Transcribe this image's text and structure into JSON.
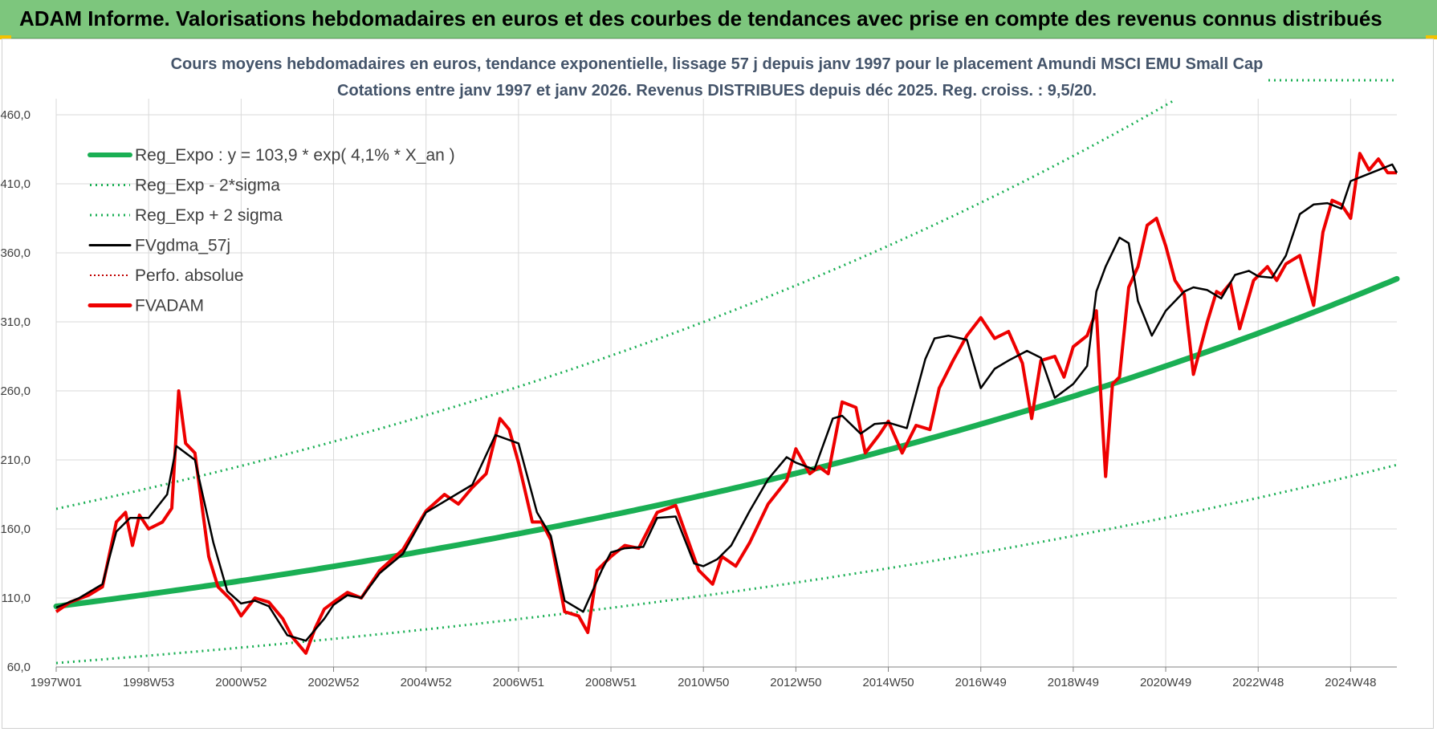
{
  "banner": {
    "title": "ADAM Informe. Valorisations hebdomadaires en euros et des courbes de tendances avec prise en compte des revenus connus distribués"
  },
  "colors": {
    "banner_bg": "#7dc67d",
    "reg_expo": "#1aaf54",
    "sigma_bands": "#1aaf54",
    "fvgdma": "#000000",
    "perfo": "#c00000",
    "fvadam": "#ee0000",
    "title_text": "#44546a"
  },
  "chart_data": {
    "type": "line",
    "title": "Cours moyens hebdomadaires en euros, tendance exponentielle, lissage 57 j depuis janv 1997  pour le placement Amundi MSCI EMU Small Cap",
    "subtitle": "Cotations entre janv 1997 et janv 2026. Revenus DISTRIBUES depuis déc 2025.  Reg. croiss. : 9,5/20.",
    "xlabel": "",
    "ylabel": "",
    "ylim": [
      60,
      460
    ],
    "yticks": [
      "60,0",
      "110,0",
      "160,0",
      "210,0",
      "260,0",
      "310,0",
      "360,0",
      "410,0",
      "460,0"
    ],
    "xlim": [
      1997.0,
      2026.0
    ],
    "xtick_positions": [
      1997.0,
      1999.0,
      2001.0,
      2003.0,
      2005.0,
      2007.0,
      2009.0,
      2011.0,
      2013.0,
      2015.0,
      2017.0,
      2019.0,
      2021.0,
      2023.0,
      2025.0
    ],
    "xticks": [
      "1997W01",
      "1998W53",
      "2000W52",
      "2002W52",
      "2004W52",
      "2006W51",
      "2008W51",
      "2010W50",
      "2012W50",
      "2014W50",
      "2016W49",
      "2018W49",
      "2020W49",
      "2022W48",
      "2024W48"
    ],
    "grid": true,
    "legend_position": "top-left",
    "regression": {
      "a": 103.9,
      "rate": 0.041,
      "upper_factor": 1.68,
      "lower_factor": 0.605
    },
    "series": [
      {
        "name": "Reg_Expo : y = 103,9 * exp( 4,1% *  X_an )",
        "style": "solid-thick",
        "color": "#1aaf54"
      },
      {
        "name": "Reg_Exp - 2*sigma",
        "style": "dotted",
        "color": "#1aaf54"
      },
      {
        "name": "Reg_Exp + 2 sigma",
        "style": "dotted",
        "color": "#1aaf54"
      },
      {
        "name": "FVgdma_57j",
        "style": "solid",
        "color": "#000000",
        "x": [
          1997.0,
          1997.5,
          1998.0,
          1998.3,
          1998.6,
          1999.0,
          1999.4,
          1999.6,
          2000.0,
          2000.4,
          2000.7,
          2001.0,
          2001.3,
          2001.6,
          2002.0,
          2002.4,
          2002.8,
          2003.0,
          2003.3,
          2003.6,
          2004.0,
          2004.5,
          2005.0,
          2005.5,
          2006.0,
          2006.5,
          2007.0,
          2007.4,
          2007.7,
          2008.0,
          2008.4,
          2008.8,
          2009.0,
          2009.3,
          2009.7,
          2010.0,
          2010.4,
          2010.8,
          2011.0,
          2011.3,
          2011.6,
          2012.0,
          2012.4,
          2012.8,
          2013.0,
          2013.4,
          2013.8,
          2014.0,
          2014.4,
          2014.7,
          2015.0,
          2015.4,
          2015.8,
          2016.0,
          2016.3,
          2016.7,
          2017.0,
          2017.3,
          2017.6,
          2018.0,
          2018.3,
          2018.6,
          2019.0,
          2019.3,
          2019.5,
          2019.7,
          2020.0,
          2020.2,
          2020.4,
          2020.7,
          2021.0,
          2021.4,
          2021.6,
          2021.9,
          2022.2,
          2022.5,
          2022.8,
          2023.0,
          2023.3,
          2023.6,
          2023.9,
          2024.2,
          2024.5,
          2024.8,
          2025.0,
          2025.3,
          2025.6,
          2025.9,
          2026.0
        ],
        "y": [
          103,
          110,
          120,
          158,
          168,
          168,
          185,
          220,
          210,
          150,
          115,
          106,
          108,
          104,
          83,
          79,
          95,
          105,
          112,
          110,
          128,
          142,
          172,
          182,
          192,
          228,
          222,
          172,
          155,
          108,
          100,
          130,
          143,
          146,
          147,
          168,
          169,
          135,
          133,
          138,
          148,
          173,
          196,
          212,
          208,
          203,
          240,
          242,
          229,
          236,
          237,
          233,
          283,
          298,
          300,
          297,
          262,
          276,
          282,
          289,
          284,
          255,
          265,
          278,
          332,
          350,
          371,
          367,
          325,
          300,
          318,
          332,
          335,
          333,
          327,
          344,
          347,
          343,
          342,
          358,
          388,
          395,
          396,
          392,
          412,
          416,
          420,
          424,
          418
        ]
      },
      {
        "name": "Perfo. absolue",
        "style": "dotted",
        "color": "#c00000"
      },
      {
        "name": "FVADAM",
        "style": "solid-thick",
        "color": "#ee0000",
        "x": [
          1997.0,
          1997.3,
          1997.7,
          1998.0,
          1998.3,
          1998.5,
          1998.65,
          1998.8,
          1999.0,
          1999.3,
          1999.5,
          1999.65,
          1999.8,
          2000.0,
          2000.3,
          2000.5,
          2000.8,
          2001.0,
          2001.3,
          2001.6,
          2001.9,
          2002.1,
          2002.4,
          2002.6,
          2002.8,
          2003.0,
          2003.3,
          2003.6,
          2004.0,
          2004.5,
          2005.0,
          2005.4,
          2005.7,
          2006.0,
          2006.3,
          2006.6,
          2006.8,
          2007.0,
          2007.3,
          2007.5,
          2007.7,
          2008.0,
          2008.3,
          2008.5,
          2008.7,
          2009.0,
          2009.3,
          2009.6,
          2010.0,
          2010.4,
          2010.6,
          2010.9,
          2011.2,
          2011.4,
          2011.7,
          2012.0,
          2012.4,
          2012.8,
          2013.0,
          2013.3,
          2013.5,
          2013.7,
          2014.0,
          2014.3,
          2014.5,
          2014.8,
          2015.0,
          2015.3,
          2015.6,
          2015.9,
          2016.1,
          2016.4,
          2016.7,
          2017.0,
          2017.3,
          2017.6,
          2017.9,
          2018.1,
          2018.3,
          2018.6,
          2018.8,
          2019.0,
          2019.3,
          2019.5,
          2019.6,
          2019.7,
          2019.85,
          2020.0,
          2020.2,
          2020.4,
          2020.6,
          2020.8,
          2021.0,
          2021.2,
          2021.4,
          2021.6,
          2021.9,
          2022.1,
          2022.2,
          2022.4,
          2022.6,
          2022.9,
          2023.2,
          2023.4,
          2023.6,
          2023.9,
          2024.2,
          2024.4,
          2024.6,
          2024.8,
          2025.0,
          2025.2,
          2025.4,
          2025.6,
          2025.8,
          2025.95,
          2026.0
        ],
        "y": [
          100,
          107,
          112,
          118,
          165,
          172,
          148,
          170,
          160,
          165,
          175,
          260,
          222,
          215,
          140,
          118,
          108,
          97,
          110,
          107,
          95,
          82,
          70,
          88,
          102,
          107,
          114,
          110,
          130,
          145,
          173,
          185,
          178,
          190,
          200,
          240,
          232,
          208,
          165,
          165,
          152,
          100,
          97,
          85,
          130,
          140,
          148,
          146,
          172,
          177,
          158,
          130,
          120,
          140,
          133,
          150,
          178,
          195,
          218,
          200,
          205,
          200,
          252,
          248,
          215,
          228,
          238,
          215,
          235,
          232,
          262,
          282,
          300,
          313,
          298,
          303,
          280,
          240,
          282,
          285,
          270,
          292,
          300,
          318,
          255,
          198,
          265,
          270,
          335,
          350,
          380,
          385,
          365,
          340,
          330,
          272,
          310,
          332,
          330,
          338,
          305,
          340,
          350,
          340,
          352,
          358,
          322,
          375,
          398,
          395,
          385,
          432,
          420,
          428,
          418,
          418,
          418
        ]
      }
    ]
  }
}
